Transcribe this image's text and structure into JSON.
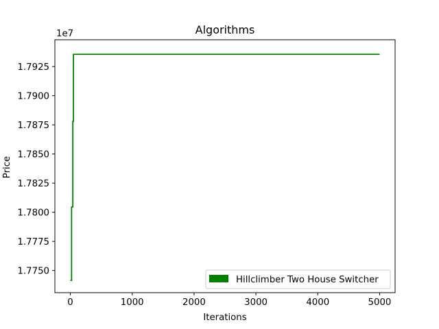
{
  "chart_data": {
    "type": "line",
    "title": "Algorithms",
    "xlabel": "Iterations",
    "ylabel": "Price",
    "y_offset_label": "1e7",
    "xlim": [
      -250,
      5250
    ],
    "ylim": [
      17731000,
      17948000
    ],
    "x_ticks": [
      0,
      1000,
      2000,
      3000,
      4000,
      5000
    ],
    "x_tick_labels": [
      "0",
      "1000",
      "2000",
      "3000",
      "4000",
      "5000"
    ],
    "y_ticks": [
      17750000,
      17775000,
      17800000,
      17825000,
      17850000,
      17875000,
      17900000,
      17925000
    ],
    "y_tick_labels": [
      "1.7750",
      "1.7775",
      "1.7800",
      "1.7825",
      "1.7850",
      "1.7875",
      "1.7900",
      "1.7925"
    ],
    "grid": false,
    "legend_position": "lower-right",
    "series": [
      {
        "name": "Hillclimber Two House Switcher",
        "color": "#008000",
        "x": [
          0,
          20,
          20,
          40,
          40,
          50,
          50,
          5000
        ],
        "y": [
          17741500,
          17741500,
          17804500,
          17804500,
          17878000,
          17878000,
          17935500,
          17935500
        ]
      }
    ]
  }
}
